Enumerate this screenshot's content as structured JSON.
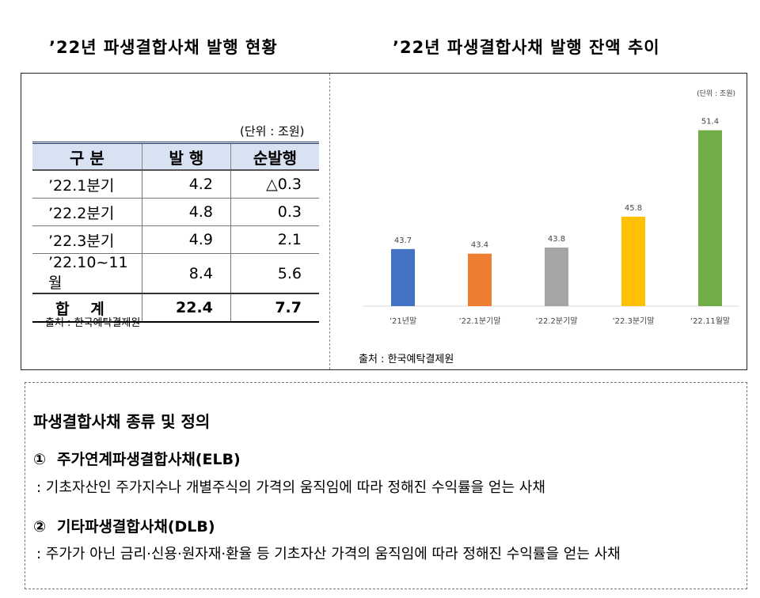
{
  "left_title": "’22년 파생결합사채 발행 현황",
  "right_title": "’22년 파생결합사채 발행 잔액 추이",
  "table": {
    "unit": "(단위 : 조원)",
    "headers": [
      "구 분",
      "발 행",
      "순발행"
    ],
    "rows": [
      [
        "’22.1분기",
        "4.2",
        "△0.3"
      ],
      [
        "’22.2분기",
        "4.8",
        "0.3"
      ],
      [
        "’22.3분기",
        "4.9",
        "2.1"
      ],
      [
        "’22.10~11월",
        "8.4",
        "5.6"
      ]
    ],
    "total": [
      "합 계",
      "22.4",
      "7.7"
    ],
    "source": "출처 : 한국예탁결제원"
  },
  "chart_data": {
    "type": "bar",
    "unit": "(단위 : 조원)",
    "categories": [
      "’21년말",
      "’22.1분기말",
      "’22.2분기말",
      "’22.3분기말",
      "’22.11월말"
    ],
    "values": [
      43.7,
      43.4,
      43.8,
      45.8,
      51.4
    ],
    "colors": [
      "#4472c4",
      "#ed7d31",
      "#a5a5a5",
      "#ffc000",
      "#70ad47"
    ],
    "ylim": [
      40,
      52
    ],
    "grid": false,
    "source": "출처 : 한국예탁결제원"
  },
  "definitions": {
    "title": "파생결합사채 종류 및 정의",
    "items": [
      {
        "marker": "①",
        "name": "주가연계파생결합사채(ELB)",
        "desc": ": 기초자산인 주가지수나 개별주식의 가격의 움직임에 따라 정해진 수익률을 얻는 사채"
      },
      {
        "marker": "②",
        "name": "기타파생결합사채(DLB)",
        "desc": ": 주가가 아닌 금리·신용·원자재·환율 등 기초자산 가격의 움직임에 따라 정해진 수익률을 얻는 사채"
      }
    ]
  }
}
